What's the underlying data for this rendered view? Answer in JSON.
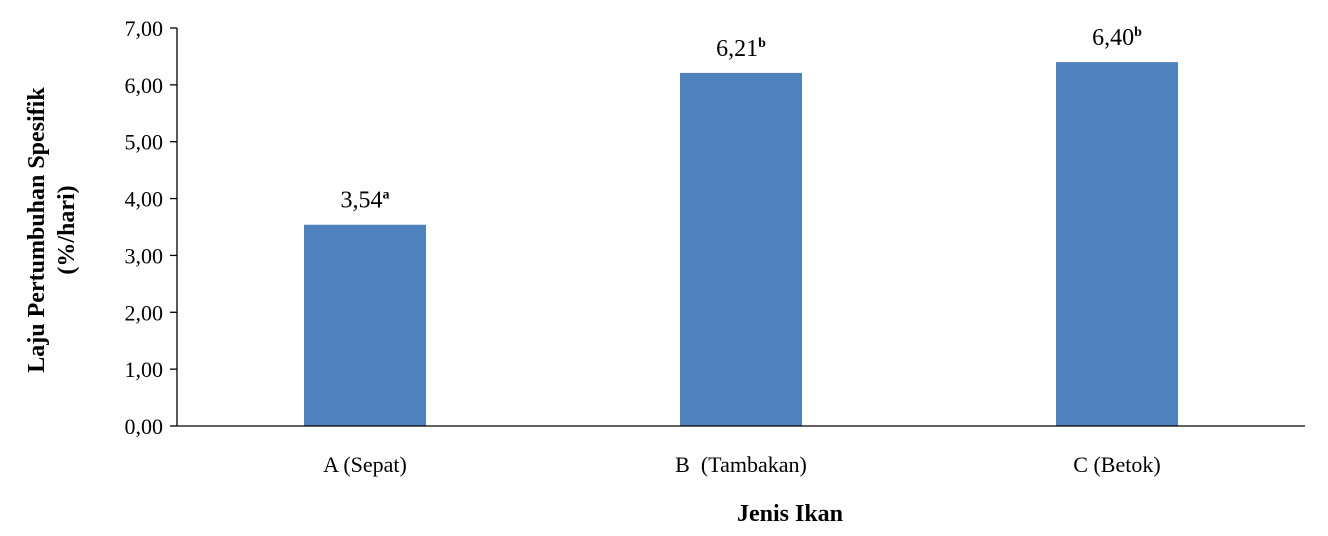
{
  "chart_data": {
    "type": "bar",
    "categories": [
      "A (Sepat)",
      "B  (Tambakan)",
      "C (Betok)"
    ],
    "values": [
      3.54,
      6.21,
      6.4
    ],
    "value_labels": [
      "3,54",
      "6,21",
      "6,40"
    ],
    "superscripts": [
      "a",
      "b",
      "b"
    ],
    "xlabel": "Jenis Ikan",
    "ylabel_lines": [
      "Laju Pertumbuhan Spesifik",
      "(%/hari)"
    ],
    "ylim": [
      0,
      7
    ],
    "yticks": [
      0,
      1,
      2,
      3,
      4,
      5,
      6,
      7
    ],
    "ytick_labels": [
      "0,00",
      "1,00",
      "2,00",
      "3,00",
      "4,00",
      "5,00",
      "6,00",
      "7,00"
    ],
    "grid": false,
    "legend": "none",
    "bar_color": "#4f81bd",
    "axis_color": "#000000"
  }
}
